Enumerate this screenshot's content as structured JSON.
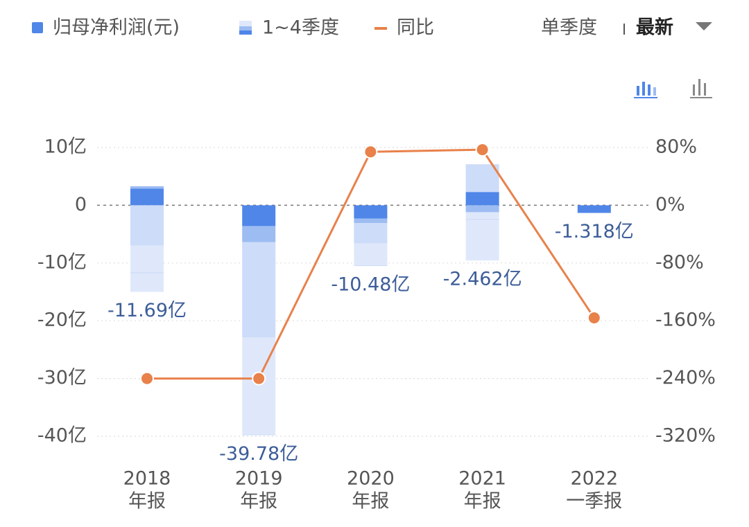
{
  "chart_data": {
    "type": "bar",
    "controls": {
      "mode": "单季度",
      "period": "最新"
    },
    "categories": [
      {
        "year": "2018",
        "period": "年报"
      },
      {
        "year": "2019",
        "period": "年报"
      },
      {
        "year": "2020",
        "period": "年报"
      },
      {
        "year": "2021",
        "period": "年报"
      },
      {
        "year": "2022",
        "period": "一季报"
      }
    ],
    "ylim": [
      -40,
      10
    ],
    "yticks": [
      {
        "value": 10,
        "label": "10亿"
      },
      0,
      {
        "value": -10,
        "label": "-10亿"
      },
      {
        "value": -20,
        "label": "-20亿"
      },
      {
        "value": -30,
        "label": "-30亿"
      },
      {
        "value": -40,
        "label": "-40亿"
      }
    ],
    "y2lim": [
      -320,
      80
    ],
    "y2ticks": [
      {
        "value": 80,
        "label": "80%"
      },
      {
        "value": 0,
        "label": "0%"
      },
      {
        "value": -80,
        "label": "-80%"
      },
      {
        "value": -160,
        "label": "-160%"
      },
      {
        "value": -240,
        "label": "-240%"
      },
      {
        "value": -320,
        "label": "-320%"
      }
    ],
    "grid": true,
    "series": [
      {
        "name": "归母净利润(元)",
        "color": "#4f86e8",
        "values": [
          -11.69,
          -39.78,
          -10.48,
          -2.462,
          -1.318
        ],
        "value_labels": [
          "-11.69亿",
          "-39.78亿",
          "-10.48亿",
          "-2.462亿",
          "-1.318亿"
        ]
      },
      {
        "name": "1~4季度",
        "colors": [
          "#4f86e8",
          "#9dbcf2",
          "#cddcf8",
          "#dfe8fb"
        ],
        "stacks": [
          [
            2.9,
            0.4,
            -7.0,
            -8.0
          ],
          [
            -3.6,
            -2.8,
            -16.5,
            -16.9
          ],
          [
            -2.3,
            -0.8,
            -3.5,
            -3.9
          ],
          [
            2.3,
            -1.2,
            4.8,
            -8.36
          ],
          [
            -1.318
          ]
        ]
      },
      {
        "name": "同比",
        "color": "#e8814a",
        "axis": "y2",
        "values": [
          -240,
          -240,
          74,
          77,
          -156
        ]
      }
    ]
  }
}
